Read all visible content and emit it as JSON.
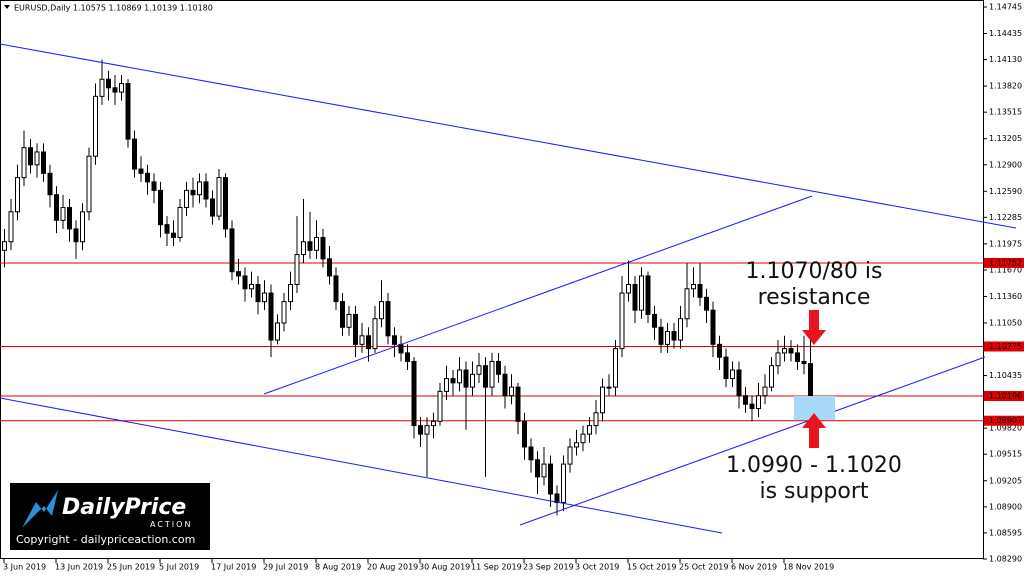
{
  "chart_data": {
    "type": "candlestick",
    "header": "EURUSD,Daily  1.10575 1.10869 1.10139 1.10180",
    "categories": [
      "3 Jun 2019",
      null,
      null,
      null,
      null,
      null,
      null,
      null,
      "13 Jun 2019",
      null,
      null,
      null,
      null,
      null,
      null,
      null,
      "25 Jun 2019",
      null,
      null,
      null,
      null,
      null,
      null,
      null,
      "5 Jul 2019",
      null,
      null,
      null,
      null,
      null,
      null,
      null,
      "17 Jul 2019",
      null,
      null,
      null,
      null,
      null,
      null,
      null,
      "29 Jul 2019",
      null,
      null,
      null,
      null,
      null,
      null,
      null,
      "8 Aug 2019",
      null,
      null,
      null,
      null,
      null,
      null,
      null,
      "20 Aug 2019",
      null,
      null,
      null,
      null,
      null,
      null,
      null,
      "30 Aug 2019",
      null,
      null,
      null,
      null,
      null,
      null,
      null,
      "11 Sep 2019",
      null,
      null,
      null,
      null,
      null,
      null,
      null,
      "23 Sep 2019",
      null,
      null,
      null,
      null,
      null,
      null,
      null,
      "3 Oct 2019",
      null,
      null,
      null,
      null,
      null,
      null,
      null,
      "15 Oct 2019",
      null,
      null,
      null,
      null,
      null,
      null,
      null,
      "25 Oct 2019",
      null,
      null,
      null,
      null,
      null,
      null,
      null,
      "6 Nov 2019",
      null,
      null,
      null,
      null,
      null,
      null,
      null,
      "18 Nov 2019",
      null,
      null,
      null,
      null
    ],
    "open": [
      1.119,
      1.12,
      1.1235,
      1.1275,
      1.131,
      1.129,
      1.1305,
      1.128,
      1.1255,
      1.1225,
      1.124,
      1.1215,
      1.12,
      1.1235,
      1.13,
      1.137,
      1.139,
      1.138,
      1.1375,
      1.1385,
      1.132,
      1.1285,
      1.128,
      1.127,
      1.126,
      1.122,
      1.121,
      1.1205,
      1.124,
      1.126,
      1.1255,
      1.127,
      1.125,
      1.123,
      1.1275,
      1.1215,
      1.1165,
      1.116,
      1.1145,
      1.115,
      1.113,
      1.114,
      1.1085,
      1.1105,
      1.113,
      1.115,
      1.1185,
      1.12,
      1.119,
      1.1205,
      1.118,
      1.116,
      1.113,
      1.11,
      1.1115,
      1.108,
      1.109,
      1.1075,
      1.111,
      1.113,
      1.109,
      1.108,
      1.107,
      1.106,
      1.0985,
      1.0975,
      1.0985,
      1.099,
      1.1025,
      1.104,
      1.1035,
      1.105,
      1.103,
      1.1045,
      1.1055,
      1.103,
      1.106,
      1.1045,
      1.102,
      1.103,
      1.099,
      1.096,
      1.0945,
      1.0925,
      1.094,
      1.0905,
      1.0895,
      1.094,
      1.096,
      1.0965,
      1.0975,
      1.0985,
      1.1,
      1.103,
      1.103,
      1.1075,
      1.114,
      1.115,
      1.112,
      1.116,
      1.1115,
      1.11,
      1.108,
      1.1095,
      1.1085,
      1.111,
      1.1145,
      1.115,
      1.1135,
      1.112,
      1.108,
      1.1065,
      1.104,
      1.105,
      1.102,
      1.101,
      1.1005,
      1.102,
      1.103,
      1.1055,
      1.107,
      1.1075,
      1.107,
      1.106,
      1.10575
    ],
    "high": [
      1.1215,
      1.125,
      1.129,
      1.133,
      1.132,
      1.1315,
      1.1315,
      1.129,
      1.1265,
      1.1255,
      1.125,
      1.1225,
      1.1245,
      1.131,
      1.1385,
      1.1413,
      1.14,
      1.1395,
      1.1395,
      1.139,
      1.133,
      1.13,
      1.129,
      1.128,
      1.127,
      1.123,
      1.1225,
      1.125,
      1.127,
      1.1275,
      1.128,
      1.128,
      1.126,
      1.1285,
      1.128,
      1.1225,
      1.118,
      1.117,
      1.1165,
      1.116,
      1.1155,
      1.115,
      1.1115,
      1.114,
      1.1165,
      1.123,
      1.125,
      1.1235,
      1.1225,
      1.1215,
      1.1195,
      1.117,
      1.114,
      1.1125,
      1.1125,
      1.1105,
      1.11,
      1.1125,
      1.1155,
      1.114,
      1.11,
      1.109,
      1.108,
      1.1065,
      1.0995,
      1.0995,
      1.1,
      1.1035,
      1.1055,
      1.105,
      1.1065,
      1.106,
      1.106,
      1.107,
      1.1065,
      1.107,
      1.107,
      1.1055,
      1.1045,
      1.1035,
      1.1,
      1.097,
      1.0955,
      1.096,
      1.095,
      1.0915,
      1.095,
      1.097,
      1.098,
      1.0985,
      1.0995,
      1.1015,
      1.104,
      1.1045,
      1.1085,
      1.116,
      1.1178,
      1.116,
      1.117,
      1.1165,
      1.1125,
      1.111,
      1.1105,
      1.1105,
      1.1125,
      1.1175,
      1.117,
      1.1175,
      1.1145,
      1.113,
      1.109,
      1.1075,
      1.106,
      1.106,
      1.103,
      1.102,
      1.1035,
      1.1045,
      1.1065,
      1.1085,
      1.109,
      1.1085,
      1.108,
      1.109,
      1.10869
    ],
    "low": [
      1.117,
      1.119,
      1.1225,
      1.1265,
      1.128,
      1.1275,
      1.127,
      1.124,
      1.121,
      1.1215,
      1.12,
      1.118,
      1.119,
      1.1225,
      1.129,
      1.136,
      1.1365,
      1.136,
      1.1365,
      1.131,
      1.1275,
      1.127,
      1.1255,
      1.1245,
      1.1205,
      1.1195,
      1.1195,
      1.12,
      1.123,
      1.124,
      1.1245,
      1.124,
      1.122,
      1.1225,
      1.1205,
      1.1155,
      1.115,
      1.113,
      1.1135,
      1.1115,
      1.112,
      1.1065,
      1.108,
      1.1095,
      1.112,
      1.114,
      1.1175,
      1.118,
      1.118,
      1.117,
      1.115,
      1.112,
      1.109,
      1.109,
      1.1065,
      1.107,
      1.106,
      1.107,
      1.11,
      1.108,
      1.1065,
      1.106,
      1.105,
      1.097,
      1.096,
      1.0925,
      1.097,
      1.0985,
      1.1015,
      1.102,
      1.1025,
      1.098,
      1.102,
      1.1035,
      1.0925,
      1.102,
      1.1035,
      1.1005,
      1.101,
      1.0975,
      1.0945,
      1.093,
      1.0905,
      1.0915,
      1.089,
      1.088,
      1.0885,
      1.093,
      1.095,
      1.0955,
      1.0965,
      1.0975,
      1.099,
      1.102,
      1.102,
      1.1065,
      1.113,
      1.1105,
      1.111,
      1.1105,
      1.1085,
      1.107,
      1.107,
      1.1075,
      1.1075,
      1.11,
      1.1135,
      1.1125,
      1.1105,
      1.1065,
      1.105,
      1.103,
      1.103,
      1.1005,
      1.1,
      1.099,
      1.0995,
      1.101,
      1.1025,
      1.1045,
      1.106,
      1.106,
      1.105,
      1.1045,
      1.10139
    ],
    "close": [
      1.12,
      1.1235,
      1.1275,
      1.131,
      1.129,
      1.1305,
      1.128,
      1.1255,
      1.1225,
      1.124,
      1.1215,
      1.12,
      1.1235,
      1.13,
      1.137,
      1.139,
      1.138,
      1.1375,
      1.1385,
      1.132,
      1.1285,
      1.128,
      1.127,
      1.126,
      1.122,
      1.121,
      1.1205,
      1.124,
      1.126,
      1.1255,
      1.127,
      1.125,
      1.123,
      1.1275,
      1.1215,
      1.1165,
      1.116,
      1.1145,
      1.115,
      1.113,
      1.114,
      1.1085,
      1.1105,
      1.113,
      1.115,
      1.1185,
      1.12,
      1.119,
      1.1205,
      1.118,
      1.116,
      1.113,
      1.11,
      1.1115,
      1.108,
      1.109,
      1.1075,
      1.111,
      1.113,
      1.109,
      1.108,
      1.107,
      1.106,
      1.0985,
      1.0975,
      1.0985,
      1.099,
      1.1025,
      1.104,
      1.1035,
      1.105,
      1.103,
      1.1045,
      1.1055,
      1.103,
      1.106,
      1.1045,
      1.102,
      1.103,
      1.099,
      1.096,
      1.0945,
      1.0925,
      1.094,
      1.0905,
      1.0895,
      1.094,
      1.096,
      1.0965,
      1.0975,
      1.0985,
      1.1,
      1.103,
      1.103,
      1.1075,
      1.114,
      1.115,
      1.112,
      1.116,
      1.1115,
      1.11,
      1.108,
      1.1095,
      1.1085,
      1.111,
      1.1145,
      1.115,
      1.1135,
      1.112,
      1.108,
      1.1065,
      1.104,
      1.105,
      1.102,
      1.101,
      1.1005,
      1.102,
      1.103,
      1.1055,
      1.107,
      1.1075,
      1.107,
      1.106,
      1.10575,
      1.1018
    ],
    "ylim": [
      1.0829,
      1.14745
    ],
    "yticks": [
      1.14745,
      1.14435,
      {
        "value": 1.1413,
        "label": "1.14130"
      },
      {
        "value": 1.1382,
        "label": "1.13820"
      },
      1.13515,
      1.13205,
      {
        "value": 1.129,
        "label": "1.12900"
      },
      {
        "value": 1.1259,
        "label": "1.12590"
      },
      1.12285,
      1.11975,
      {
        "value": 1.1167,
        "label": "1.11670"
      },
      {
        "value": 1.1136,
        "label": "1.11360"
      },
      {
        "value": 1.1105,
        "label": "1.11050"
      },
      1.10435,
      {
        "value": 1.0982,
        "label": "1.09820"
      },
      1.09515,
      1.09205,
      {
        "value": 1.089,
        "label": "1.08900"
      },
      1.08595,
      {
        "value": 1.0829,
        "label": "1.08290"
      }
    ],
    "hlines": [
      1.11752,
      1.10775,
      1.10196,
      1.09907
    ],
    "hline_color": "#e00000",
    "up_color": "#ffffff",
    "down_color": "#000000",
    "grid": false,
    "annotations": [
      "1.1070/80 is",
      "resistance",
      "1.0990 - 1.1020",
      "is support"
    ],
    "logo": {
      "name": "DailyPrice",
      "tag": "ACTION",
      "copyright": "Copyright - dailypriceaction.com"
    }
  }
}
